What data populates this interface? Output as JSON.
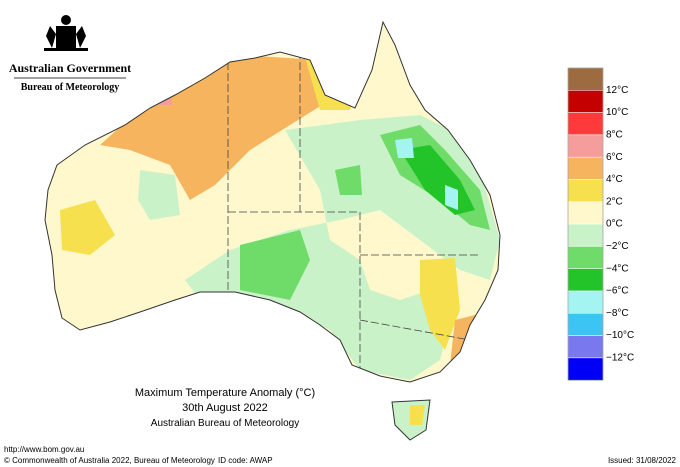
{
  "header": {
    "government": "Australian Government",
    "agency": "Bureau of Meteorology"
  },
  "title": {
    "line1": "Maximum Temperature Anomaly (°C)",
    "line2": "30th August 2022",
    "line3": "Australian Bureau of Meteorology"
  },
  "legend": {
    "colors": [
      "#9c6b3f",
      "#c40000",
      "#ff3a3a",
      "#f59c9c",
      "#f6b45e",
      "#f7e04e",
      "#fff8cc",
      "#caf2c8",
      "#6fdc6a",
      "#22c42a",
      "#a4f4f2",
      "#3cc4f2",
      "#7a78ee",
      "#0000f6"
    ],
    "labels": [
      "12°C",
      "10°C",
      "8°C",
      "6°C",
      "4°C",
      "2°C",
      "0°C",
      "−2°C",
      "−4°C",
      "−6°C",
      "−8°C",
      "−10°C",
      "−12°C"
    ]
  },
  "footer": {
    "url": "http://www.bom.gov.au",
    "copyright": "© Commonwealth of Australia 2022, Bureau of Meteorology",
    "id_code": "ID code: AWAP",
    "issued": "Issued: 31/08/2022"
  }
}
